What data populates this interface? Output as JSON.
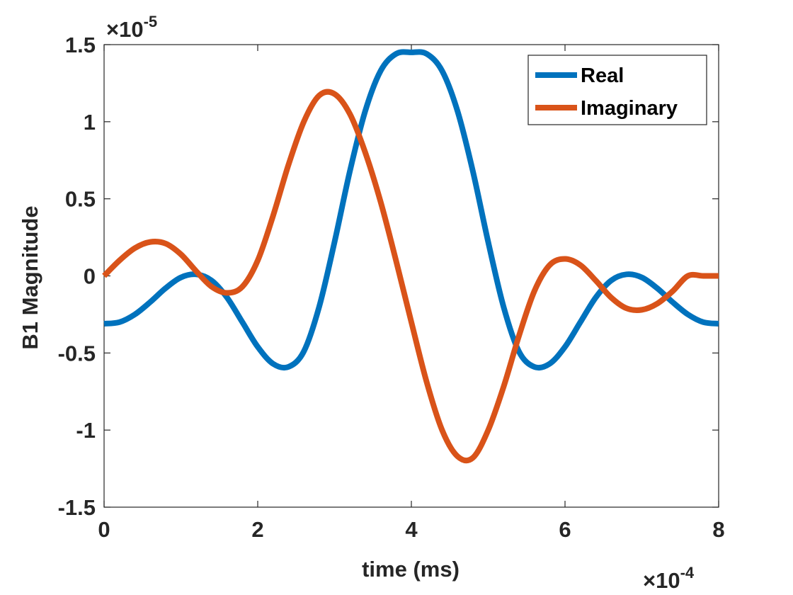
{
  "chart_data": {
    "type": "line",
    "title": "",
    "xlabel": "time (ms)",
    "ylabel": "B1 Magnitude",
    "xlim": [
      0,
      8
    ],
    "ylim": [
      -1.5,
      1.5
    ],
    "x_multiplier": {
      "base": "×10",
      "exponent": "-4"
    },
    "y_multiplier": {
      "base": "×10",
      "exponent": "-5"
    },
    "x_ticks": [
      0,
      2,
      4,
      6,
      8
    ],
    "x_tick_labels": [
      "0",
      "2",
      "4",
      "6",
      "8"
    ],
    "y_ticks": [
      -1.5,
      -1,
      -0.5,
      0,
      0.5,
      1,
      1.5
    ],
    "y_tick_labels": [
      "-1.5",
      "-1",
      "-0.5",
      "0",
      "0.5",
      "1",
      "1.5"
    ],
    "grid": false,
    "legend_position": "top-right",
    "series": [
      {
        "name": "Real",
        "color": "#0072BD",
        "x": [
          0,
          0.2,
          0.4,
          0.6,
          0.8,
          1.0,
          1.2,
          1.4,
          1.6,
          1.8,
          2.0,
          2.2,
          2.4,
          2.6,
          2.8,
          3.0,
          3.2,
          3.4,
          3.6,
          3.8,
          4.0,
          4.2,
          4.4,
          4.6,
          4.8,
          5.0,
          5.2,
          5.4,
          5.6,
          5.8,
          6.0,
          6.2,
          6.4,
          6.6,
          6.8,
          7.0,
          7.2,
          7.4,
          7.6,
          7.8,
          8.0
        ],
        "values": [
          -0.31,
          -0.3,
          -0.25,
          -0.17,
          -0.08,
          -0.01,
          0.01,
          -0.03,
          -0.14,
          -0.3,
          -0.46,
          -0.57,
          -0.59,
          -0.49,
          -0.2,
          0.22,
          0.68,
          1.07,
          1.33,
          1.44,
          1.45,
          1.44,
          1.33,
          1.07,
          0.68,
          0.22,
          -0.2,
          -0.49,
          -0.59,
          -0.57,
          -0.46,
          -0.3,
          -0.14,
          -0.03,
          0.01,
          -0.01,
          -0.08,
          -0.17,
          -0.25,
          -0.3,
          -0.31
        ]
      },
      {
        "name": "Imaginary",
        "color": "#D95319",
        "x": [
          0,
          0.2,
          0.4,
          0.6,
          0.8,
          1.0,
          1.2,
          1.4,
          1.6,
          1.8,
          2.0,
          2.2,
          2.4,
          2.6,
          2.8,
          3.0,
          3.2,
          3.4,
          3.6,
          3.8,
          4.0,
          4.2,
          4.4,
          4.6,
          4.8,
          5.0,
          5.2,
          5.4,
          5.6,
          5.8,
          6.0,
          6.2,
          6.4,
          6.6,
          6.8,
          7.0,
          7.2,
          7.4,
          7.6,
          7.8,
          8.0
        ],
        "values": [
          0.0,
          0.1,
          0.18,
          0.22,
          0.21,
          0.14,
          0.03,
          -0.07,
          -0.11,
          -0.07,
          0.1,
          0.39,
          0.72,
          1.0,
          1.17,
          1.18,
          1.05,
          0.8,
          0.48,
          0.1,
          -0.3,
          -0.69,
          -1.0,
          -1.17,
          -1.18,
          -1.0,
          -0.72,
          -0.39,
          -0.1,
          0.07,
          0.11,
          0.07,
          -0.03,
          -0.14,
          -0.21,
          -0.22,
          -0.18,
          -0.1,
          0.0,
          0.0,
          0.0
        ]
      }
    ]
  }
}
